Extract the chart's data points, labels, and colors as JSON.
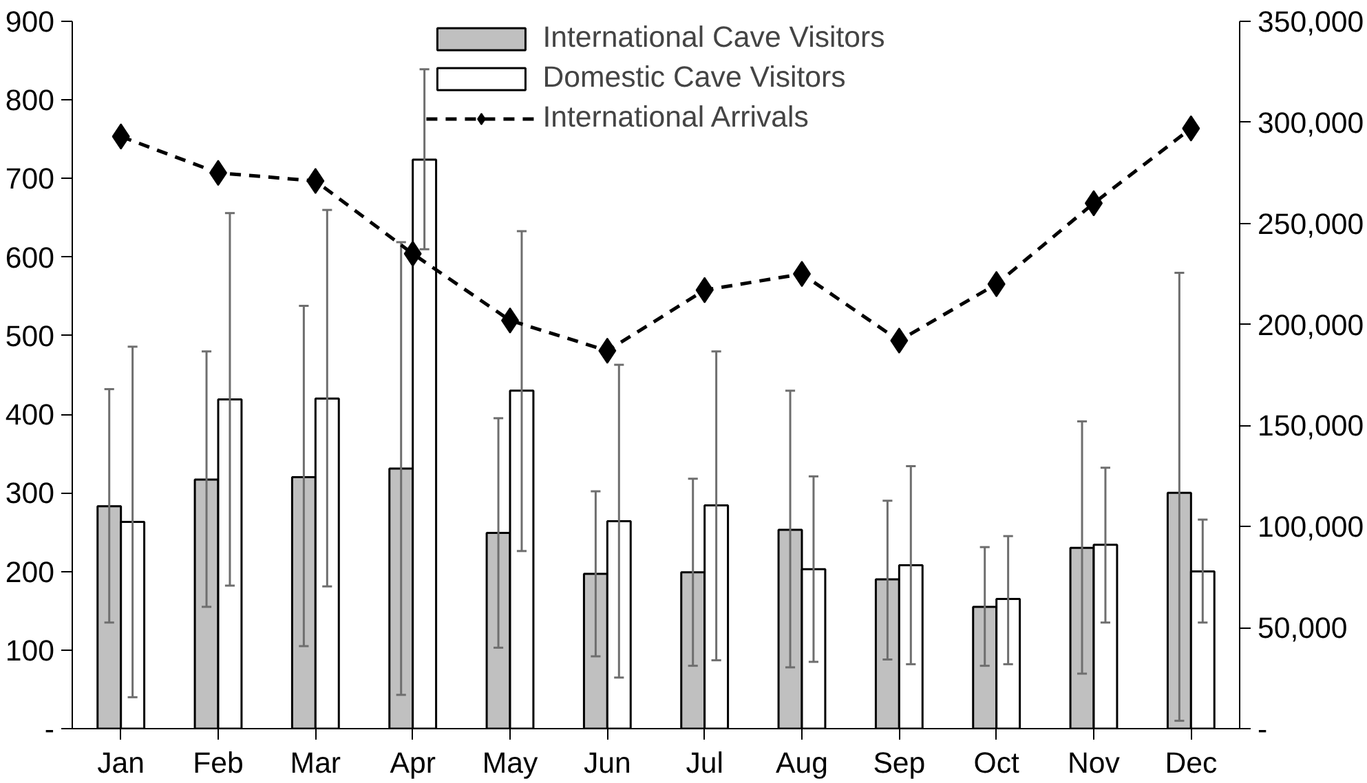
{
  "chart_data": {
    "type": "bar",
    "categories": [
      "Jan",
      "Feb",
      "Mar",
      "Apr",
      "May",
      "Jun",
      "Jul",
      "Aug",
      "Sep",
      "Oct",
      "Nov",
      "Dec"
    ],
    "series": [
      {
        "name": "International Cave Visitors",
        "color": "#c0c0c0",
        "values": [
          283,
          317,
          320,
          331,
          249,
          197,
          199,
          253,
          190,
          155,
          230,
          300
        ],
        "errors": [
          [
            135,
            432
          ],
          [
            155,
            480
          ],
          [
            105,
            538
          ],
          [
            43,
            619
          ],
          [
            103,
            395
          ],
          [
            92,
            302
          ],
          [
            80,
            318
          ],
          [
            78,
            430
          ],
          [
            88,
            290
          ],
          [
            80,
            231
          ],
          [
            70,
            391
          ],
          [
            10,
            580
          ]
        ]
      },
      {
        "name": "Domestic Cave Visitors",
        "color": "#ffffff",
        "values": [
          263,
          419,
          420,
          724,
          430,
          264,
          284,
          203,
          208,
          165,
          234,
          200
        ],
        "errors": [
          [
            40,
            486
          ],
          [
            182,
            656
          ],
          [
            181,
            660
          ],
          [
            610,
            839
          ],
          [
            226,
            633
          ],
          [
            65,
            463
          ],
          [
            87,
            480
          ],
          [
            85,
            321
          ],
          [
            82,
            334
          ],
          [
            82,
            245
          ],
          [
            135,
            332
          ],
          [
            135,
            266
          ]
        ]
      },
      {
        "name": "International Arrivals",
        "type": "line",
        "axis": "y2",
        "color": "#000000",
        "marker": "diamond",
        "line_style": "dashed",
        "values": [
          293000,
          275000,
          271000,
          235000,
          202000,
          187000,
          217000,
          225000,
          192000,
          220000,
          260000,
          297000
        ]
      }
    ],
    "ylim": [
      0,
      900
    ],
    "yticks": [
      {
        "value": 0,
        "label": "-"
      },
      100,
      200,
      300,
      400,
      500,
      600,
      700,
      800,
      900
    ],
    "y2lim": [
      0,
      350000
    ],
    "y2ticks": [
      {
        "value": 0,
        "label": "-"
      },
      {
        "value": 50000,
        "label": "50,000"
      },
      {
        "value": 100000,
        "label": "100,000"
      },
      {
        "value": 150000,
        "label": "150,000"
      },
      {
        "value": 200000,
        "label": "200,000"
      },
      {
        "value": 250000,
        "label": "250,000"
      },
      {
        "value": 300000,
        "label": "300,000"
      },
      {
        "value": 350000,
        "label": "350,000"
      }
    ],
    "legend": "top",
    "grid": false
  }
}
